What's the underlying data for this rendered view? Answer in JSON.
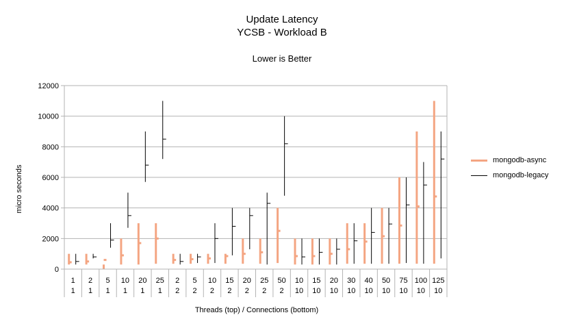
{
  "chart_data": {
    "type": "stock",
    "title": "Update Latency",
    "subtitle_line": "YCSB - Workload B",
    "note": "Lower is Better",
    "ylabel": "micro seconds",
    "xlabel": "Threads (top)  / Connections (bottom)",
    "ylim": [
      0,
      12000
    ],
    "yticks": [
      0,
      2000,
      4000,
      6000,
      8000,
      10000,
      12000
    ],
    "grid": true,
    "legend_position": "right",
    "categories": [
      {
        "threads": "1",
        "connections": "1"
      },
      {
        "threads": "2",
        "connections": "1"
      },
      {
        "threads": "5",
        "connections": "1"
      },
      {
        "threads": "10",
        "connections": "1"
      },
      {
        "threads": "20",
        "connections": "1"
      },
      {
        "threads": "25",
        "connections": "1"
      },
      {
        "threads": "2",
        "connections": "2"
      },
      {
        "threads": "5",
        "connections": "2"
      },
      {
        "threads": "10",
        "connections": "2"
      },
      {
        "threads": "15",
        "connections": "2"
      },
      {
        "threads": "20",
        "connections": "2"
      },
      {
        "threads": "25",
        "connections": "2"
      },
      {
        "threads": "50",
        "connections": "2"
      },
      {
        "threads": "10",
        "connections": "10"
      },
      {
        "threads": "15",
        "connections": "10"
      },
      {
        "threads": "20",
        "connections": "10"
      },
      {
        "threads": "30",
        "connections": "10"
      },
      {
        "threads": "40",
        "connections": "10"
      },
      {
        "threads": "50",
        "connections": "10"
      },
      {
        "threads": "75",
        "connections": "10"
      },
      {
        "threads": "100",
        "connections": "10"
      },
      {
        "threads": "125",
        "connections": "10"
      }
    ],
    "series": [
      {
        "name": "mongodb-async",
        "color": "#f4a582",
        "low": [
          300,
          300,
          0,
          300,
          300,
          350,
          350,
          350,
          350,
          350,
          350,
          350,
          400,
          300,
          300,
          300,
          350,
          350,
          350,
          350,
          350,
          350
        ],
        "high": [
          1000,
          1000,
          300,
          2000,
          3000,
          3000,
          1000,
          1000,
          1000,
          1000,
          2000,
          2000,
          4000,
          2000,
          2000,
          2000,
          3000,
          3000,
          4000,
          6000,
          9000,
          11000
        ],
        "avg": [
          450,
          500,
          600,
          900,
          1700,
          2000,
          600,
          650,
          700,
          850,
          1000,
          1100,
          2500,
          850,
          850,
          1000,
          1300,
          1800,
          2150,
          2850,
          4100,
          4750
        ]
      },
      {
        "name": "mongodb-legacy",
        "color": "#000000",
        "low": [
          300,
          700,
          1400,
          2700,
          5700,
          7200,
          300,
          400,
          400,
          900,
          1300,
          300,
          4800,
          300,
          300,
          300,
          350,
          350,
          350,
          400,
          350,
          700
        ],
        "high": [
          1000,
          1000,
          3000,
          5000,
          9000,
          11000,
          1000,
          1000,
          3000,
          4000,
          4000,
          5000,
          10000,
          2000,
          2000,
          2000,
          3000,
          4000,
          4000,
          6000,
          7000,
          9000
        ],
        "avg": [
          500,
          800,
          1900,
          3500,
          6800,
          8500,
          500,
          800,
          2000,
          2800,
          3500,
          4300,
          8200,
          800,
          1100,
          1300,
          1850,
          2400,
          2950,
          4200,
          5500,
          7200
        ]
      }
    ]
  }
}
